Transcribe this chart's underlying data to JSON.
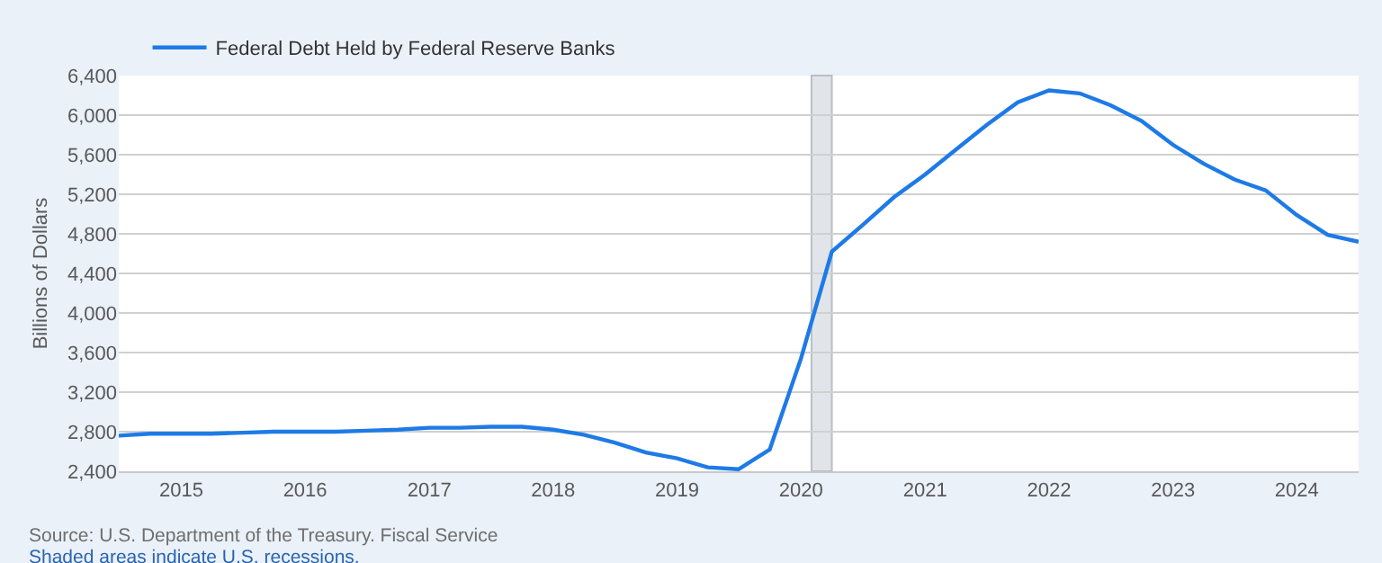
{
  "chart_data": {
    "type": "line",
    "ylabel": "Billions of Dollars",
    "x": [
      "2014-07",
      "2014-10",
      "2015-01",
      "2015-04",
      "2015-07",
      "2015-10",
      "2016-01",
      "2016-04",
      "2016-07",
      "2016-10",
      "2017-01",
      "2017-04",
      "2017-07",
      "2017-10",
      "2018-01",
      "2018-04",
      "2018-07",
      "2018-10",
      "2019-01",
      "2019-04",
      "2019-07",
      "2019-10",
      "2020-01",
      "2020-04",
      "2020-07",
      "2020-10",
      "2021-01",
      "2021-04",
      "2021-07",
      "2021-10",
      "2022-01",
      "2022-04",
      "2022-07",
      "2022-10",
      "2023-01",
      "2023-04",
      "2023-07",
      "2023-10",
      "2024-01",
      "2024-04",
      "2024-07"
    ],
    "series": [
      {
        "name": "Federal Debt Held by Federal Reserve Banks",
        "color": "#1e7ae6",
        "values": [
          2760,
          2780,
          2780,
          2780,
          2790,
          2800,
          2800,
          2800,
          2810,
          2820,
          2840,
          2840,
          2850,
          2850,
          2820,
          2770,
          2690,
          2590,
          2530,
          2440,
          2420,
          2620,
          3540,
          4620,
          4890,
          5170,
          5400,
          5650,
          5900,
          6130,
          6250,
          6220,
          6100,
          5940,
          5700,
          5510,
          5350,
          5240,
          4990,
          4790,
          4720
        ]
      }
    ],
    "xlim": [
      "2014-07-01",
      "2024-07-01"
    ],
    "xticks": [
      "2015",
      "2016",
      "2017",
      "2018",
      "2019",
      "2020",
      "2021",
      "2022",
      "2023",
      "2024"
    ],
    "ylim": [
      2400,
      6400
    ],
    "yticks": [
      {
        "value": 2400,
        "label": "2,400"
      },
      {
        "value": 2800,
        "label": "2,800"
      },
      {
        "value": 3200,
        "label": "3,200"
      },
      {
        "value": 3600,
        "label": "3,600"
      },
      {
        "value": 4000,
        "label": "4,000"
      },
      {
        "value": 4400,
        "label": "4,400"
      },
      {
        "value": 4800,
        "label": "4,800"
      },
      {
        "value": 5200,
        "label": "5,200"
      },
      {
        "value": 5600,
        "label": "5,600"
      },
      {
        "value": 6000,
        "label": "6,000"
      },
      {
        "value": 6400,
        "label": "6,400"
      }
    ],
    "bands": [
      {
        "axis": "x",
        "from": "2020-02-01",
        "to": "2020-04-01",
        "color": "#e1e5ea"
      }
    ],
    "grid": "y",
    "legend": "top left",
    "marker": "none",
    "line_style": "solid",
    "annotations": [
      "Source: U.S. Department of the Treasury. Fiscal Service",
      "Shaded areas indicate U.S. recessions."
    ]
  }
}
